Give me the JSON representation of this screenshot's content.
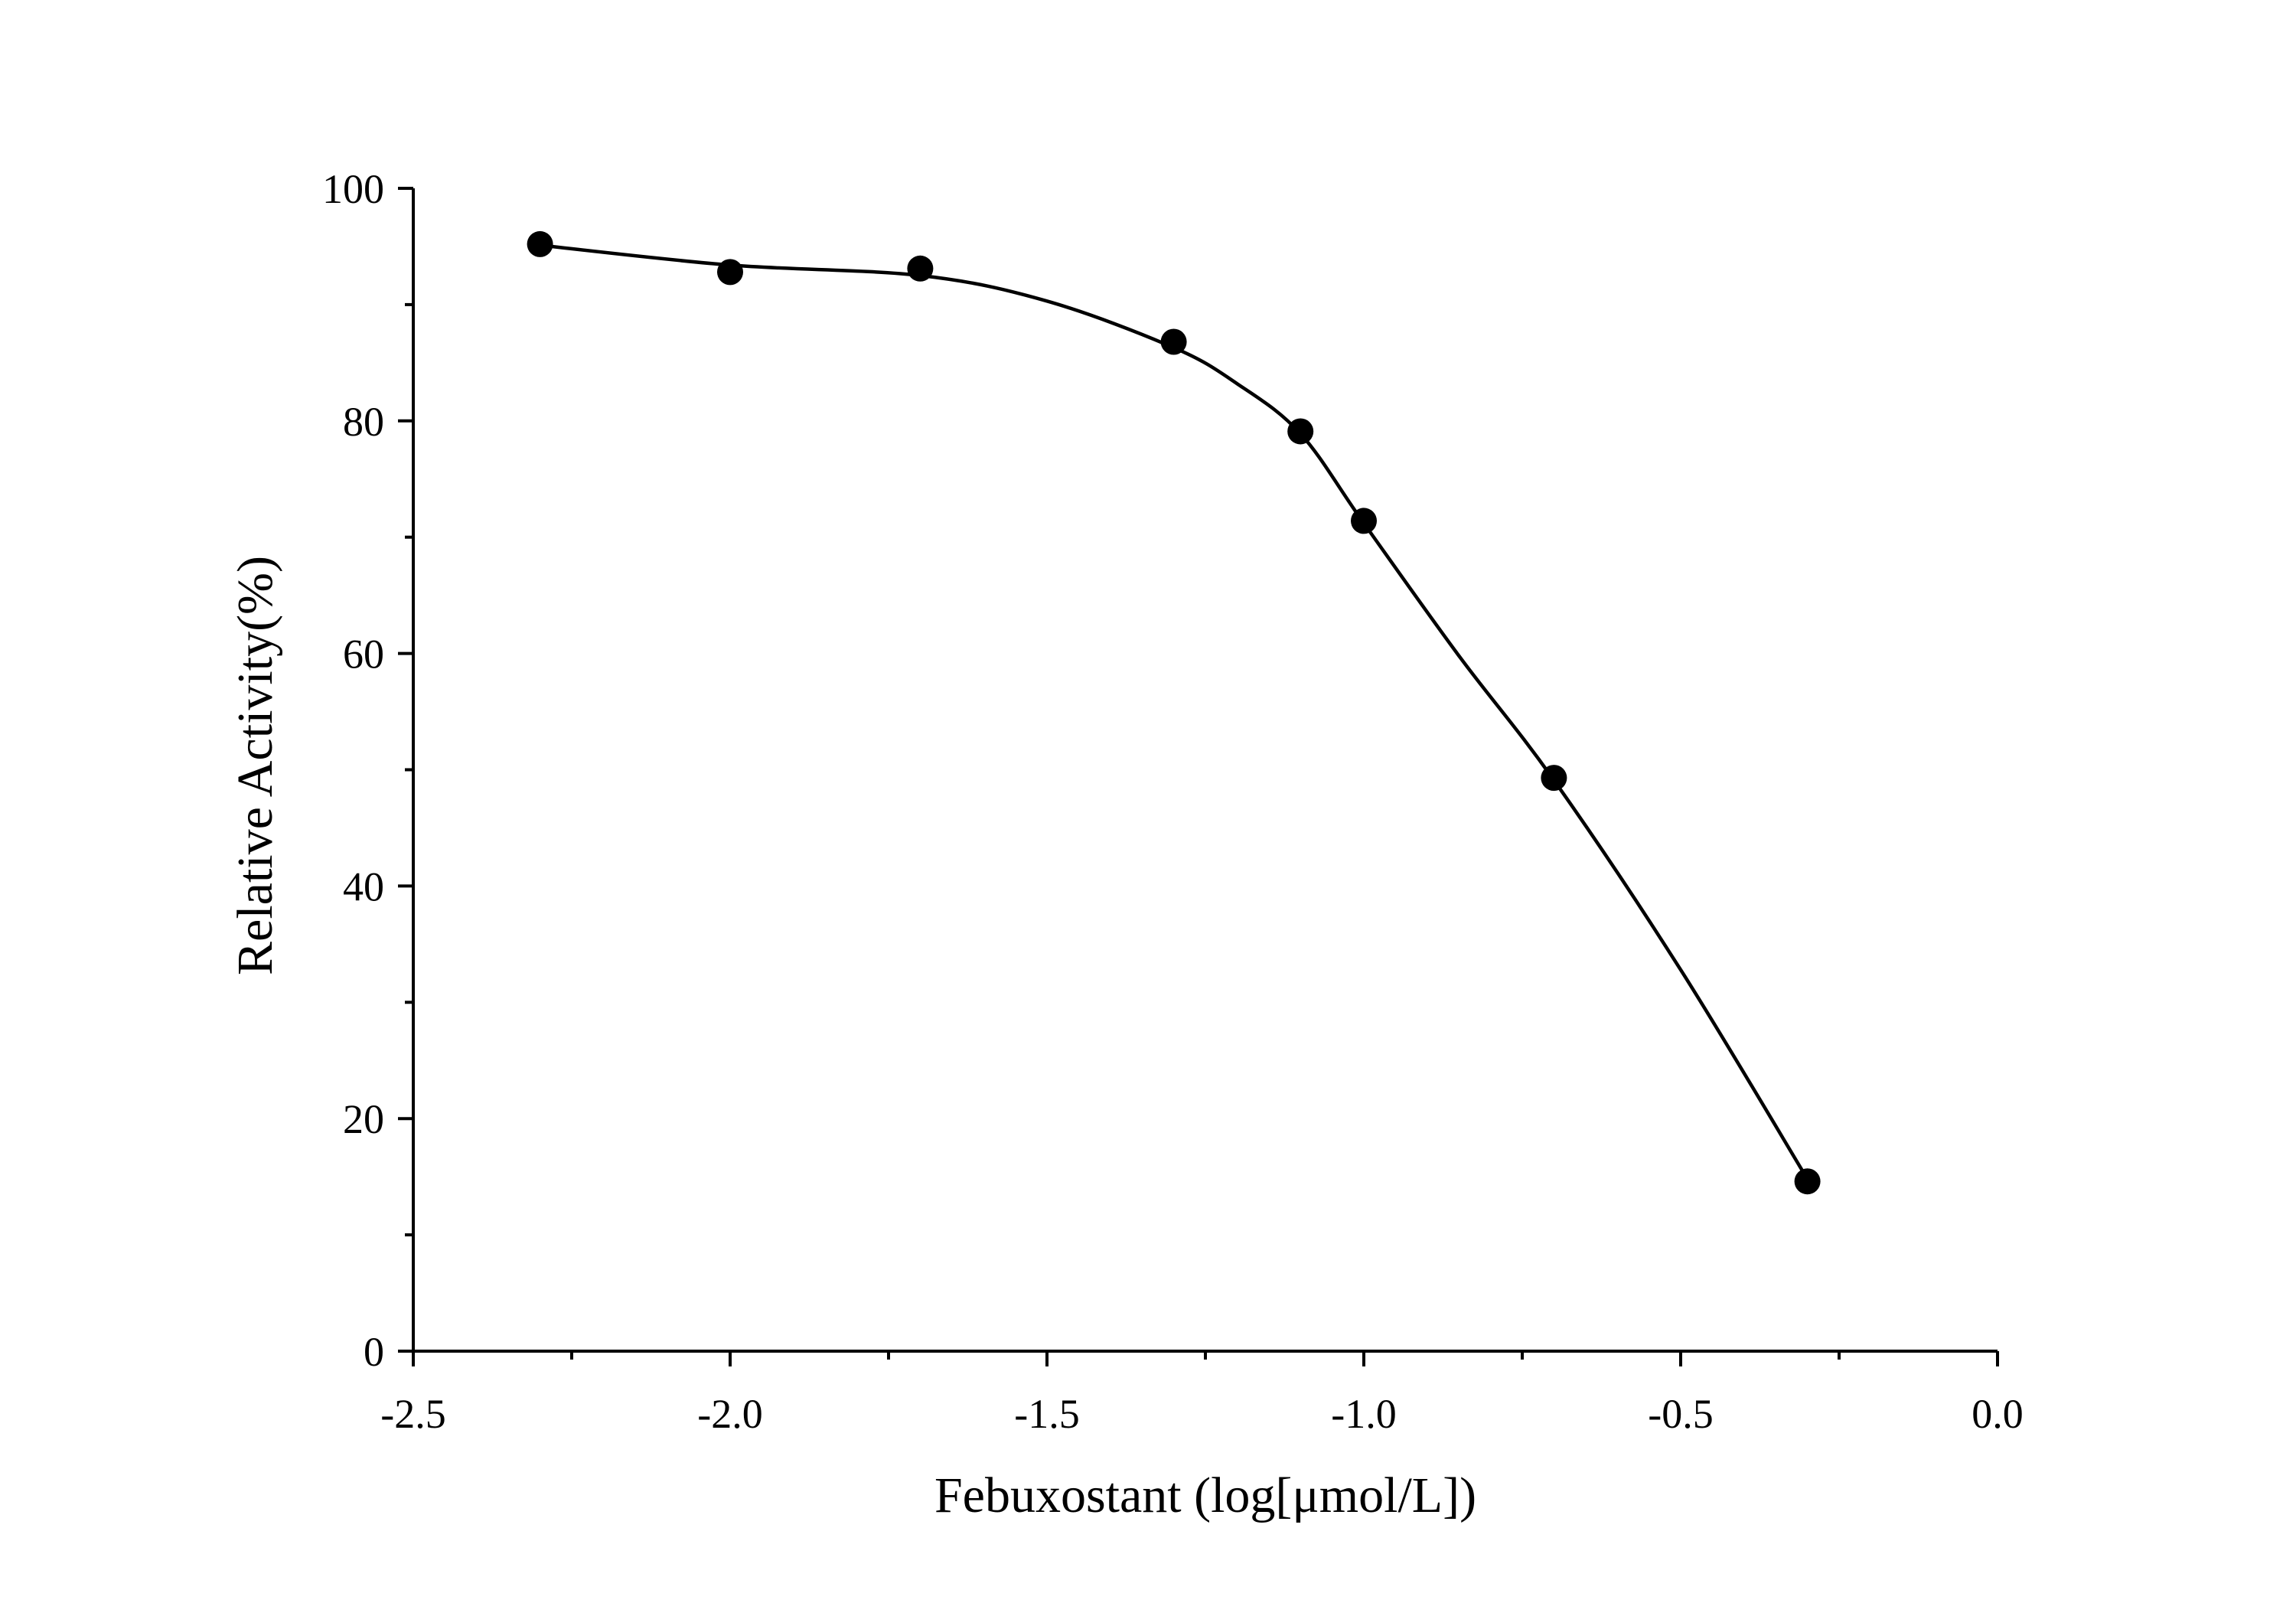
{
  "chart_data": {
    "type": "scatter",
    "title": "",
    "xlabel": "Febuxostant (log[μmol/L])",
    "ylabel": "Relative Activity(%)",
    "xlim": [
      -2.5,
      0.0
    ],
    "ylim": [
      0,
      100
    ],
    "x_ticks": [
      -2.5,
      -2.0,
      -1.5,
      -1.0,
      -0.5,
      0.0
    ],
    "x_tick_labels": [
      "-2.5",
      "-2.0",
      "-1.5",
      "-1.0",
      "-0.5",
      "0.0"
    ],
    "x_minor_ticks": [
      -2.25,
      -1.75,
      -1.25,
      -0.75,
      -0.25
    ],
    "y_ticks": [
      0,
      20,
      40,
      60,
      80,
      100
    ],
    "y_tick_labels": [
      "0",
      "20",
      "40",
      "60",
      "80",
      "100"
    ],
    "y_minor_ticks": [
      10,
      30,
      50,
      70,
      90
    ],
    "grid": false,
    "legend": "none",
    "series": [
      {
        "x": [
          -2.3,
          -2.0,
          -1.7,
          -1.3,
          -1.1,
          -1.0,
          -0.7,
          -0.3
        ],
        "y": [
          95.2,
          92.8,
          93.1,
          86.8,
          79.1,
          71.4,
          49.3,
          14.6
        ],
        "marker": "filled-circle",
        "color": "#000000"
      }
    ],
    "fit_curve": {
      "x": [
        -2.3,
        -2.0,
        -1.7,
        -1.5,
        -1.3,
        -1.2,
        -1.1,
        -1.0,
        -0.85,
        -0.7,
        -0.5,
        -0.3
      ],
      "y": [
        95.1,
        93.4,
        92.5,
        90.3,
        86.3,
        83.2,
        78.9,
        71.2,
        59.8,
        49.1,
        32.8,
        14.8
      ],
      "color": "#000000"
    }
  }
}
